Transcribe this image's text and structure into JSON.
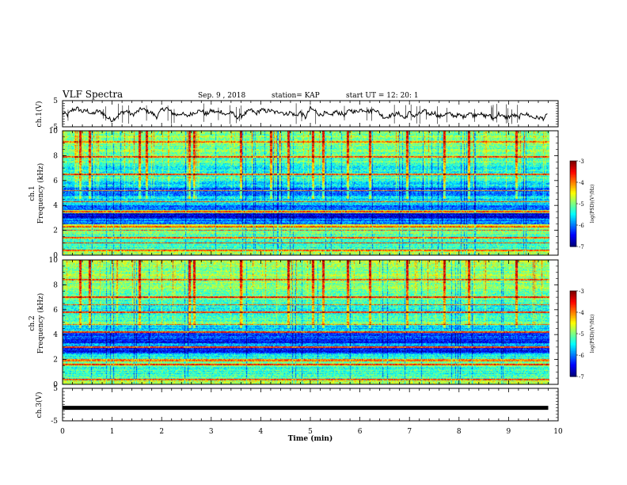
{
  "header": {
    "title": "VLF Spectra",
    "date": "Sep. 9 , 2018",
    "station": "station= KAP",
    "start": "start  UT =   12: 20: 1"
  },
  "chart_data": [
    {
      "type": "line",
      "name": "ch1-waveform",
      "ylabel": "ch.1(V)",
      "xlim": [
        0,
        10
      ],
      "ylim": [
        -5,
        5
      ],
      "yticks": [
        "5",
        "-5"
      ],
      "x": [
        0,
        0.1,
        0.2,
        0.3,
        0.4,
        0.5,
        0.6,
        0.7,
        0.8,
        0.9,
        1.0,
        1.1,
        1.2,
        1.3,
        1.4,
        1.5,
        1.6,
        1.7,
        1.8,
        1.9,
        2.0,
        2.1,
        2.2,
        2.3,
        2.4,
        2.5,
        2.6,
        2.7,
        2.8,
        2.9,
        3.0,
        3.1,
        3.2,
        3.3,
        3.4,
        3.5,
        3.6,
        3.7,
        3.8,
        3.9,
        4.0,
        4.1,
        4.2,
        4.3,
        4.4,
        4.5,
        4.6,
        4.7,
        4.8,
        4.9,
        5.0,
        5.1,
        5.2,
        5.3,
        5.4,
        5.5,
        5.6,
        5.7,
        5.8,
        5.9,
        6.0,
        6.1,
        6.2,
        6.3,
        6.4,
        6.5,
        6.6,
        6.7,
        6.8,
        6.9,
        7.0,
        7.1,
        7.2,
        7.3,
        7.4,
        7.5,
        7.6,
        7.7,
        7.8,
        7.9,
        8.0,
        8.1,
        8.2,
        8.3,
        8.4,
        8.5,
        8.6,
        8.7,
        8.8,
        8.9,
        9.0,
        9.1,
        9.2,
        9.3,
        9.4,
        9.5,
        9.6,
        9.7,
        9.8
      ],
      "y": [
        0.3,
        -0.5,
        1.5,
        2.0,
        0.8,
        1.2,
        -0.3,
        1.0,
        0.5,
        -1.5,
        -2.5,
        -1.0,
        0.5,
        1.0,
        -0.5,
        0.6,
        2.0,
        1.0,
        0.3,
        -1.2,
        1.5,
        2.2,
        0.4,
        -0.5,
        0.2,
        -1.0,
        0.0,
        0.8,
        1.2,
        -0.3,
        1.2,
        0.5,
        0.9,
        -0.5,
        0.8,
        -1.5,
        -0.8,
        0.2,
        1.5,
        0.0,
        1.5,
        1.0,
        1.2,
        0.4,
        1.0,
        -0.3,
        0.6,
        -0.8,
        0.5,
        -1.5,
        2.0,
        1.0,
        -0.5,
        0.3,
        -1.0,
        0.8,
        0.2,
        -0.5,
        1.5,
        0.6,
        1.5,
        1.5,
        0.8,
        1.8,
        0.0,
        -1.5,
        -0.8,
        -0.2,
        0.0,
        -1.8,
        0.5,
        -1.0,
        0.0,
        1.0,
        -0.2,
        0.5,
        -1.2,
        -0.3,
        0.0,
        -0.8,
        -0.5,
        -1.2,
        0.5,
        -0.8,
        0.4,
        -1.0,
        -0.5,
        -2.0,
        0.0,
        -1.3,
        -1.2,
        -0.5,
        -1.5,
        0.2,
        -0.5,
        -1.5,
        -1.5,
        -1.8,
        -0.3
      ]
    },
    {
      "type": "heatmap",
      "name": "ch1-spectrogram",
      "ylabel": "ch.1\nFrequency (kHz)",
      "xlim": [
        0,
        10
      ],
      "ylim": [
        0,
        10
      ],
      "yticks": [
        "0",
        "2",
        "4",
        "6",
        "8",
        "10"
      ],
      "colorbar": {
        "label": "log(PSD)(V²/Hz)",
        "min": -7,
        "max": -3,
        "ticks": [
          "-3",
          "-4",
          "-5",
          "-6",
          "-7"
        ]
      },
      "bands": [
        {
          "from": 0,
          "to": 0.3,
          "level": -4.8
        },
        {
          "from": 0.3,
          "to": 0.6,
          "level": -5.0
        },
        {
          "from": 0.6,
          "to": 1.2,
          "level": -5.3
        },
        {
          "from": 1.2,
          "to": 1.7,
          "level": -5.2
        },
        {
          "from": 1.7,
          "to": 2.1,
          "level": -5.0
        },
        {
          "from": 2.1,
          "to": 2.5,
          "level": -4.7
        },
        {
          "from": 2.5,
          "to": 2.9,
          "level": -6.0
        },
        {
          "from": 2.9,
          "to": 3.4,
          "level": -6.6
        },
        {
          "from": 3.4,
          "to": 3.6,
          "level": -5.0
        },
        {
          "from": 3.6,
          "to": 4.0,
          "level": -6.0
        },
        {
          "from": 4.0,
          "to": 4.8,
          "level": -5.6
        },
        {
          "from": 4.8,
          "to": 5.4,
          "level": -6.2
        },
        {
          "from": 5.4,
          "to": 6.0,
          "level": -5.5
        },
        {
          "from": 6.0,
          "to": 6.6,
          "level": -5.2
        },
        {
          "from": 6.6,
          "to": 7.2,
          "level": -5.4
        },
        {
          "from": 7.2,
          "to": 8.0,
          "level": -5.2
        },
        {
          "from": 8.0,
          "to": 9.0,
          "level": -5.0
        },
        {
          "from": 9.0,
          "to": 10.0,
          "level": -4.9
        }
      ],
      "lines": [
        0.4,
        1.0,
        1.4,
        2.0,
        2.3,
        3.5,
        4.3,
        5.2,
        6.5,
        7.9,
        9.1
      ],
      "burst_times": [
        0.35,
        0.55,
        1.55,
        1.7,
        2.55,
        2.65,
        3.6,
        4.2,
        4.55,
        5.05,
        5.25,
        5.75,
        6.2,
        6.95,
        7.7,
        8.2,
        9.15
      ]
    },
    {
      "type": "heatmap",
      "name": "ch2-spectrogram",
      "ylabel": "ch.2\nFrequency (kHz)",
      "xlim": [
        0,
        10
      ],
      "ylim": [
        0,
        10
      ],
      "yticks": [
        "0",
        "2",
        "4",
        "6",
        "8",
        "10"
      ],
      "colorbar": {
        "label": "log(PSD)(V²/Hz)",
        "min": -7,
        "max": -3,
        "ticks": [
          "-3",
          "-4",
          "-5",
          "-6",
          "-7"
        ]
      },
      "bands": [
        {
          "from": 0,
          "to": 0.3,
          "level": -4.8
        },
        {
          "from": 0.3,
          "to": 0.8,
          "level": -5.1
        },
        {
          "from": 0.8,
          "to": 1.4,
          "level": -5.3
        },
        {
          "from": 1.4,
          "to": 1.9,
          "level": -5.0
        },
        {
          "from": 1.9,
          "to": 2.5,
          "level": -5.4
        },
        {
          "from": 2.5,
          "to": 3.0,
          "level": -6.4
        },
        {
          "from": 3.0,
          "to": 3.3,
          "level": -5.8
        },
        {
          "from": 3.3,
          "to": 3.6,
          "level": -6.5
        },
        {
          "from": 3.6,
          "to": 4.2,
          "level": -6.2
        },
        {
          "from": 4.2,
          "to": 4.8,
          "level": -5.6
        },
        {
          "from": 4.8,
          "to": 5.6,
          "level": -5.2
        },
        {
          "from": 5.6,
          "to": 6.5,
          "level": -5.4
        },
        {
          "from": 6.5,
          "to": 7.5,
          "level": -5.2
        },
        {
          "from": 7.5,
          "to": 8.5,
          "level": -5.0
        },
        {
          "from": 8.5,
          "to": 10.0,
          "level": -4.9
        }
      ],
      "lines": [
        0.4,
        1.6,
        1.9,
        2.0,
        3.0,
        4.2,
        4.8,
        5.8,
        6.4,
        7.0,
        8.4
      ],
      "burst_times": [
        0.35,
        0.55,
        1.55,
        2.55,
        2.65,
        3.6,
        4.55,
        5.05,
        5.25,
        5.75,
        6.2,
        6.95,
        7.7,
        8.2,
        9.15
      ]
    },
    {
      "type": "line",
      "name": "ch3-waveform",
      "ylabel": "ch.3(V)",
      "xlim": [
        0,
        10
      ],
      "ylim": [
        -5,
        5
      ],
      "yticks": [
        "5",
        "-5"
      ],
      "xlabel": "Time  (min)",
      "xticks": [
        "0",
        "1",
        "2",
        "3",
        "4",
        "5",
        "6",
        "7",
        "8",
        "9",
        "10"
      ],
      "x": [
        0,
        9.8
      ],
      "y": [
        -1.0,
        -1.0
      ]
    }
  ]
}
